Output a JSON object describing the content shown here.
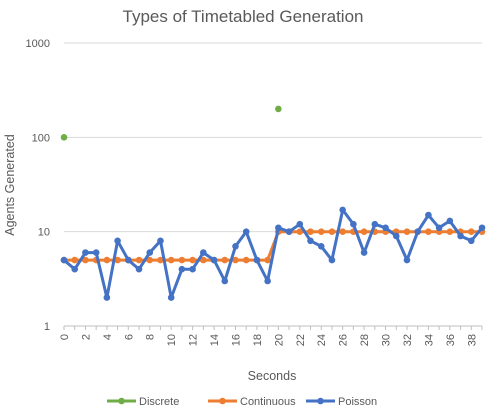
{
  "chart_data": {
    "type": "line",
    "title": "Types of Timetabled Generation",
    "xlabel": "Seconds",
    "ylabel": "Agents Generated",
    "yscale": "log",
    "ylim": [
      1,
      1000
    ],
    "yticks": [
      "1",
      "10",
      "100",
      "1000"
    ],
    "xlim": [
      0,
      39
    ],
    "xticks": [
      "0",
      "2",
      "4",
      "6",
      "8",
      "10",
      "12",
      "14",
      "16",
      "18",
      "20",
      "22",
      "24",
      "26",
      "28",
      "30",
      "32",
      "34",
      "36",
      "38"
    ],
    "grid": true,
    "legend": "bottom",
    "series": [
      {
        "name": "Discrete",
        "color": "#70ad47",
        "line": false,
        "x": [
          0,
          20
        ],
        "y": [
          100,
          200
        ]
      },
      {
        "name": "Continuous",
        "color": "#ed7d31",
        "line": true,
        "x": [
          0,
          1,
          2,
          3,
          4,
          5,
          6,
          7,
          8,
          9,
          10,
          11,
          12,
          13,
          14,
          15,
          16,
          17,
          18,
          19,
          20,
          21,
          22,
          23,
          24,
          25,
          26,
          27,
          28,
          29,
          30,
          31,
          32,
          33,
          34,
          35,
          36,
          37,
          38,
          39
        ],
        "y": [
          5,
          5,
          5,
          5,
          5,
          5,
          5,
          5,
          5,
          5,
          5,
          5,
          5,
          5,
          5,
          5,
          5,
          5,
          5,
          5,
          10,
          10,
          10,
          10,
          10,
          10,
          10,
          10,
          10,
          10,
          10,
          10,
          10,
          10,
          10,
          10,
          10,
          10,
          10,
          10
        ]
      },
      {
        "name": "Poisson",
        "color": "#4472c4",
        "line": true,
        "x": [
          0,
          1,
          2,
          3,
          4,
          5,
          6,
          7,
          8,
          9,
          10,
          11,
          12,
          13,
          14,
          15,
          16,
          17,
          18,
          19,
          20,
          21,
          22,
          23,
          24,
          25,
          26,
          27,
          28,
          29,
          30,
          31,
          32,
          33,
          34,
          35,
          36,
          37,
          38,
          39
        ],
        "y": [
          5,
          4,
          6,
          6,
          2,
          8,
          5,
          4,
          6,
          8,
          2,
          4,
          4,
          6,
          5,
          3,
          7,
          10,
          5,
          3,
          11,
          10,
          12,
          8,
          7,
          5,
          17,
          12,
          6,
          12,
          11,
          9,
          5,
          10,
          15,
          11,
          13,
          9,
          8,
          11
        ]
      }
    ]
  }
}
